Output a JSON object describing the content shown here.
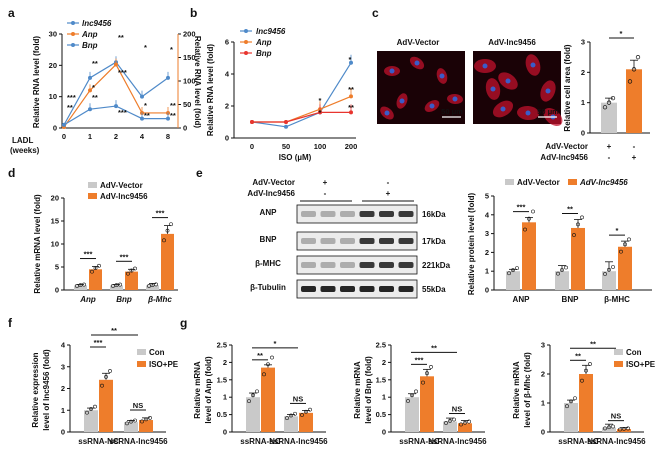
{
  "colors": {
    "blue": "#4f8ac9",
    "orange": "#ee7d2b",
    "red": "#e8352f",
    "grey": "#c9c9c9",
    "heart": "#2f62a8"
  },
  "panels": {
    "a": {
      "label": "a",
      "xlabel": "LADL",
      "xlabel2": "(weeks)",
      "ylabel": "Relative RNA level (fold)",
      "ylabel_right": "Relative RNA level (fold)",
      "series": [
        "lnc9456",
        "Anp",
        "Bnp"
      ]
    },
    "b": {
      "label": "b",
      "xlabel": "ISO (µM)",
      "ylabel": "Relative RNA level (fold)",
      "series": [
        "lnc9456",
        "Anp",
        "Bnp"
      ]
    },
    "c": {
      "label": "c",
      "img1_title": "AdV-Vector",
      "img2_title": "AdV-lnc9456",
      "scale": "50 μm",
      "ylabel": "Relative cell area (fold)",
      "row1": "AdV-Vector",
      "row2": "AdV-lnc9456",
      "row1_marks": [
        "+",
        "-"
      ],
      "row2_marks": [
        "-",
        "+"
      ],
      "sig": "*"
    },
    "d": {
      "label": "d",
      "ylabel": "Relative mRNA level (fold)",
      "legend": [
        "AdV-Vector",
        "AdV-lnc9456"
      ],
      "sig": [
        "***",
        "***",
        "***"
      ]
    },
    "e": {
      "label": "e",
      "row1": "AdV-Vector",
      "row2": "AdV-lnc9456",
      "row1_marks": [
        "+",
        "-"
      ],
      "row2_marks": [
        "-",
        "+"
      ],
      "bands": [
        "ANP",
        "BNP",
        "β-MHC",
        "β-Tubulin"
      ],
      "kda": [
        "16kDa",
        "17kDa",
        "221kDa",
        "55kDa"
      ],
      "ylabel": "Relative protein level (fold)",
      "legend": [
        "AdV-Vector",
        "AdV-lnc9456"
      ],
      "sig": [
        "***",
        "**",
        "*"
      ]
    },
    "f": {
      "label": "f",
      "ylabel": "Relative expression",
      "ylabel2": "level of lnc9456 (fold)",
      "legend": [
        "Con",
        "ISO+PE"
      ],
      "sig": [
        "***",
        "NS",
        "**"
      ]
    },
    "g": {
      "label": "g",
      "legend": [
        "Con",
        "ISO+PE"
      ],
      "ylabels": [
        [
          "Relative mRNA",
          "level of Anp (fold)"
        ],
        [
          "Relative mRNA",
          "level of Bnp (fold)"
        ],
        [
          "Relative mRNA",
          "level of β-Mhc (fold)"
        ]
      ],
      "sig": [
        [
          "**",
          "NS",
          "*"
        ],
        [
          "***",
          "NS",
          "**"
        ],
        [
          "**",
          "NS",
          "**"
        ]
      ]
    }
  },
  "chart_data": [
    {
      "panel": "a",
      "type": "line",
      "x": [
        0,
        1,
        2,
        4,
        8
      ],
      "xlim_labels": [
        "0",
        "1",
        "2",
        "4",
        "8"
      ],
      "ylim_left": [
        0,
        30
      ],
      "yticks_left": [
        0,
        10,
        20,
        30
      ],
      "ylim_right": [
        0,
        200
      ],
      "yticks_right": [
        0,
        50,
        100,
        150,
        200
      ],
      "series": [
        {
          "name": "lnc9456",
          "axis": "left",
          "values": [
            1,
            16,
            21,
            10,
            16
          ]
        },
        {
          "name": "Anp",
          "axis": "right",
          "values": [
            2,
            80,
            135,
            32,
            32
          ]
        },
        {
          "name": "Bnp",
          "axis": "left",
          "values": [
            1,
            6,
            7,
            3,
            3
          ]
        }
      ],
      "annotations": [
        "**",
        "**",
        "*",
        "*",
        "*",
        "***",
        "*",
        "**",
        "**",
        "***",
        "**",
        "**",
        "***",
        "**"
      ]
    },
    {
      "panel": "b",
      "type": "line",
      "categories": [
        "0",
        "50",
        "100",
        "200"
      ],
      "ylim": [
        0,
        6
      ],
      "yticks": [
        0,
        2,
        4,
        6
      ],
      "series": [
        {
          "name": "lnc9456",
          "values": [
            1,
            0.7,
            1.6,
            4.7
          ]
        },
        {
          "name": "Anp",
          "values": [
            1,
            1,
            1.8,
            2.6
          ]
        },
        {
          "name": "Bnp",
          "values": [
            1,
            1,
            1.6,
            1.6
          ]
        }
      ],
      "annotations": [
        "*",
        "*",
        "*",
        "**",
        "**"
      ]
    },
    {
      "panel": "c",
      "type": "bar",
      "categories": [
        "AdV-Vector",
        "AdV-lnc9456"
      ],
      "values": [
        1.0,
        2.1
      ],
      "errors": [
        0.15,
        0.3
      ],
      "ylim": [
        0,
        3
      ],
      "yticks": [
        0,
        1,
        2,
        3
      ],
      "points": [
        [
          0.85,
          1.0,
          1.15
        ],
        [
          1.7,
          2.1,
          2.5
        ]
      ]
    },
    {
      "panel": "d",
      "type": "bar",
      "categories": [
        "Anp",
        "Bnp",
        "β-Mhc"
      ],
      "ylim": [
        0,
        20
      ],
      "yticks": [
        0,
        5,
        10,
        15,
        20
      ],
      "series": [
        {
          "name": "AdV-Vector",
          "values": [
            1,
            1,
            1
          ],
          "errors": [
            0.2,
            0.2,
            0.4
          ]
        },
        {
          "name": "AdV-lnc9456",
          "values": [
            4.5,
            4.0,
            12.2
          ],
          "errors": [
            0.6,
            0.5,
            1.8
          ]
        }
      ]
    },
    {
      "panel": "e",
      "type": "bar",
      "categories": [
        "ANP",
        "BNP",
        "β-MHC"
      ],
      "ylim": [
        0,
        5
      ],
      "yticks": [
        0,
        1,
        2,
        3,
        4,
        5
      ],
      "series": [
        {
          "name": "AdV-Vector",
          "values": [
            1.0,
            1.0,
            1.0
          ],
          "errors": [
            0.1,
            0.3,
            0.5
          ]
        },
        {
          "name": "AdV-lnc9456",
          "values": [
            3.6,
            3.3,
            2.3
          ],
          "errors": [
            0.25,
            0.45,
            0.3
          ]
        }
      ]
    },
    {
      "panel": "f",
      "type": "bar",
      "categories": [
        "ssRNA-NC",
        "ssRNA-lnc9456"
      ],
      "ylim": [
        0,
        4
      ],
      "yticks": [
        0,
        1,
        2,
        3,
        4
      ],
      "series": [
        {
          "name": "Con",
          "values": [
            1.0,
            0.45
          ],
          "errors": [
            0.1,
            0.08
          ]
        },
        {
          "name": "ISO+PE",
          "values": [
            2.4,
            0.55
          ],
          "errors": [
            0.3,
            0.1
          ]
        }
      ]
    },
    {
      "panel": "g1",
      "type": "bar",
      "categories": [
        "ssRNA-NC",
        "ssRNA-lnc9456"
      ],
      "ylim": [
        0,
        2.5
      ],
      "yticks": [
        0.0,
        0.5,
        1.0,
        1.5,
        2.0,
        2.5
      ],
      "series": [
        {
          "name": "Con",
          "values": [
            1.0,
            0.45
          ],
          "errors": [
            0.12,
            0.05
          ]
        },
        {
          "name": "ISO+PE",
          "values": [
            1.85,
            0.55
          ],
          "errors": [
            0.08,
            0.07
          ]
        }
      ]
    },
    {
      "panel": "g2",
      "type": "bar",
      "categories": [
        "ssRNA-NC",
        "ssRNA-lnc9456"
      ],
      "ylim": [
        0,
        2.5
      ],
      "yticks": [
        0.0,
        0.5,
        1.0,
        1.5,
        2.0,
        2.5
      ],
      "series": [
        {
          "name": "Con",
          "values": [
            1.0,
            0.3
          ],
          "errors": [
            0.1,
            0.1
          ]
        },
        {
          "name": "ISO+PE",
          "values": [
            1.6,
            0.25
          ],
          "errors": [
            0.2,
            0.08
          ]
        }
      ]
    },
    {
      "panel": "g3",
      "type": "bar",
      "categories": [
        "ssRNA-NC",
        "ssRNA-lnc9456"
      ],
      "ylim": [
        0,
        3
      ],
      "yticks": [
        0,
        1,
        2,
        3
      ],
      "series": [
        {
          "name": "Con",
          "values": [
            1.0,
            0.15
          ],
          "errors": [
            0.1,
            0.12
          ]
        },
        {
          "name": "ISO+PE",
          "values": [
            2.0,
            0.1
          ],
          "errors": [
            0.3,
            0.05
          ]
        }
      ]
    }
  ]
}
